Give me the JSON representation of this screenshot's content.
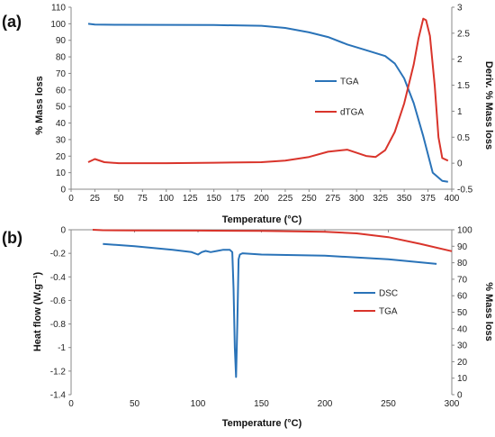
{
  "chart_data": [
    {
      "panel_label": "(a)",
      "type": "line",
      "xlabel": "Temperature (°C)",
      "ylabel_left": "% Mass loss",
      "ylabel_right": "Deriv. % Mass loss",
      "xlim": [
        0,
        400
      ],
      "ylim_left": [
        0,
        110
      ],
      "ylim_right": [
        -0.5,
        3
      ],
      "x_ticks": [
        "0",
        "25",
        "50",
        "75",
        "100",
        "125",
        "150",
        "175",
        "200",
        "225",
        "250",
        "275",
        "300",
        "325",
        "350",
        "375",
        "400"
      ],
      "y_left_ticks": [
        "0",
        "10",
        "20",
        "30",
        "40",
        "50",
        "60",
        "70",
        "80",
        "90",
        "100",
        "110"
      ],
      "y_right_ticks": [
        "-0.5",
        "0",
        "0.5",
        "1",
        "1.5",
        "2",
        "2.5",
        "3"
      ],
      "grid": false,
      "legend_placement": "center-right",
      "series": [
        {
          "name": "TGA",
          "axis": "left",
          "color": "#2a73b8",
          "x": [
            18,
            25,
            50,
            100,
            150,
            200,
            225,
            250,
            270,
            290,
            310,
            330,
            340,
            350,
            360,
            370,
            380,
            390,
            396
          ],
          "y": [
            100,
            99.5,
            99.4,
            99.3,
            99.2,
            98.8,
            97.5,
            94.8,
            92,
            87.5,
            84,
            80.5,
            76,
            67,
            52,
            32,
            10,
            5,
            4.5
          ]
        },
        {
          "name": "dTGA",
          "axis": "right",
          "color": "#d9342b",
          "x": [
            18,
            25,
            35,
            50,
            100,
            150,
            200,
            225,
            250,
            270,
            290,
            300,
            310,
            320,
            330,
            340,
            350,
            360,
            365,
            370,
            373,
            377,
            382,
            386,
            390,
            396
          ],
          "y": [
            0.02,
            0.08,
            0.02,
            0.0,
            0.0,
            0.01,
            0.02,
            0.05,
            0.12,
            0.22,
            0.26,
            0.2,
            0.14,
            0.12,
            0.25,
            0.6,
            1.15,
            1.9,
            2.4,
            2.78,
            2.75,
            2.45,
            1.5,
            0.5,
            0.1,
            0.05
          ]
        }
      ]
    },
    {
      "panel_label": "(b)",
      "type": "line",
      "xlabel": "Temperature (°C)",
      "ylabel_left": "Heat flow (W.g⁻¹)",
      "ylabel_right": "% Mass loss",
      "xlim": [
        0,
        300
      ],
      "ylim_left": [
        -1.4,
        0
      ],
      "ylim_right": [
        0,
        100
      ],
      "x_ticks": [
        "0",
        "50",
        "100",
        "150",
        "200",
        "250",
        "300"
      ],
      "y_left_ticks": [
        "0",
        "-0.2",
        "-0.4",
        "-0.6",
        "-0.8",
        "-1",
        "-1.2",
        "-1.4"
      ],
      "y_right_ticks": [
        "0",
        "10",
        "20",
        "30",
        "40",
        "50",
        "60",
        "70",
        "80",
        "90",
        "100"
      ],
      "grid": false,
      "legend_placement": "center-right",
      "series": [
        {
          "name": "DSC",
          "axis": "left",
          "color": "#2a73b8",
          "x": [
            25,
            50,
            80,
            95,
            100,
            103,
            106,
            110,
            115,
            120,
            125,
            127,
            128,
            129,
            130,
            131,
            132,
            133,
            135,
            150,
            200,
            250,
            288
          ],
          "y": [
            -0.12,
            -0.14,
            -0.17,
            -0.19,
            -0.21,
            -0.19,
            -0.18,
            -0.19,
            -0.18,
            -0.17,
            -0.17,
            -0.19,
            -0.5,
            -1.0,
            -1.25,
            -0.8,
            -0.25,
            -0.21,
            -0.2,
            -0.21,
            -0.22,
            -0.25,
            -0.29
          ]
        },
        {
          "name": "TGA",
          "axis": "right",
          "color": "#d9342b",
          "x": [
            17,
            25,
            50,
            100,
            150,
            200,
            225,
            250,
            275,
            300
          ],
          "y": [
            100,
            99.7,
            99.6,
            99.5,
            99.3,
            98.8,
            97.8,
            95.5,
            91.5,
            87
          ]
        }
      ]
    }
  ]
}
